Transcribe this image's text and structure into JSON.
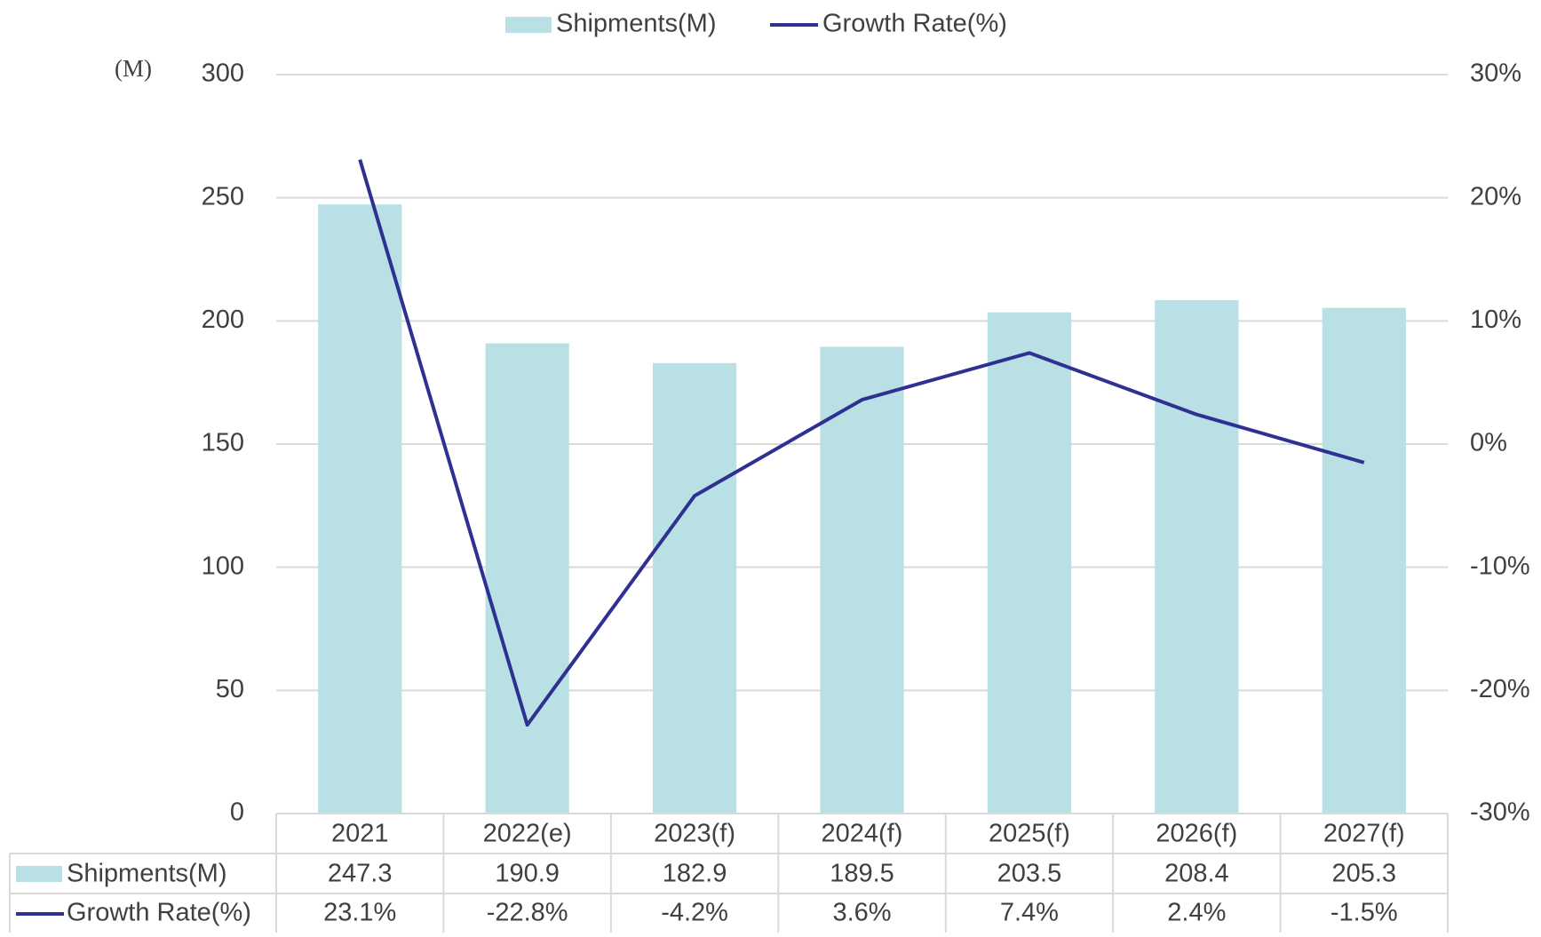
{
  "chart_data": {
    "type": "bar-line",
    "unit_label": "(M)",
    "categories": [
      "2021",
      "2022(e)",
      "2023(f)",
      "2024(f)",
      "2025(f)",
      "2026(f)",
      "2027(f)"
    ],
    "series": [
      {
        "name": "Shipments(M)",
        "type": "bar",
        "color": "#b9e0e4",
        "values": [
          247.3,
          190.9,
          182.9,
          189.5,
          203.5,
          208.4,
          205.3
        ]
      },
      {
        "name": "Growth Rate(%)",
        "type": "line",
        "axis": "y2",
        "color": "#2e3192",
        "values": [
          23.1,
          -22.8,
          -4.2,
          3.6,
          7.4,
          2.4,
          -1.5
        ],
        "value_labels": [
          "23.1%",
          "-22.8%",
          "-4.2%",
          "3.6%",
          "7.4%",
          "2.4%",
          "-1.5%"
        ]
      }
    ],
    "ylim": [
      0,
      300
    ],
    "yticks": [
      0,
      50,
      100,
      150,
      200,
      250,
      300
    ],
    "y2lim": [
      -30,
      30
    ],
    "y2ticks": [
      {
        "value": -30,
        "label": "-30%"
      },
      {
        "value": -20,
        "label": "-20%"
      },
      {
        "value": -10,
        "label": "-10%"
      },
      {
        "value": 0,
        "label": "0%"
      },
      {
        "value": 10,
        "label": "10%"
      },
      {
        "value": 20,
        "label": "20%"
      },
      {
        "value": 30,
        "label": "30%"
      }
    ],
    "grid": true,
    "legend": "top"
  }
}
